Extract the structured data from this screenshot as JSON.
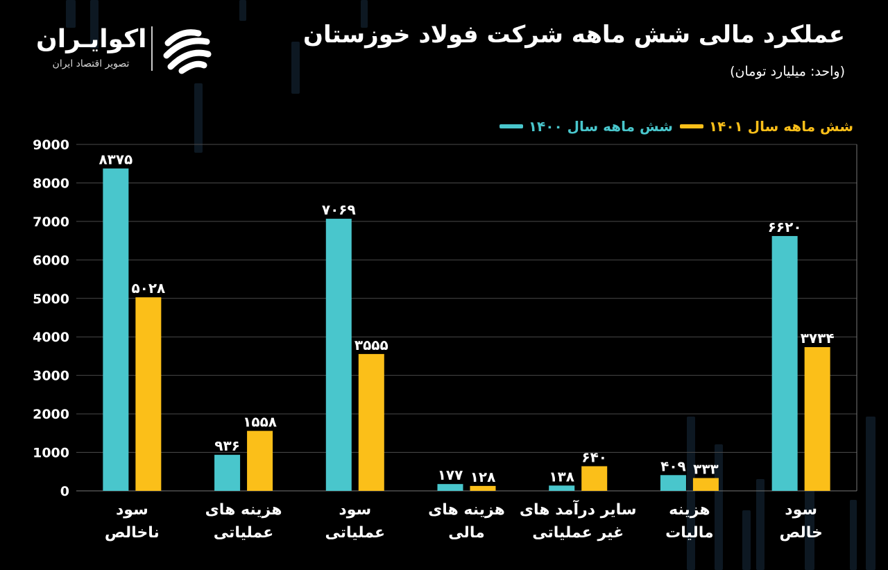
{
  "brand": {
    "name": "اکوایـران",
    "tagline": "تصویر اقتصاد ایران"
  },
  "header": {
    "title": "عملکرد مالی شش ماهه شرکت فولاد خوزستان",
    "unit": "(واحد: میلیارد تومان)"
  },
  "colors": {
    "series_1400": "#49c6cc",
    "series_1401": "#fbbf19",
    "grid": "#555555",
    "background": "#000000"
  },
  "chart_data": {
    "type": "bar",
    "title": "عملکرد مالی شش ماهه شرکت فولاد خوزستان",
    "ylabel": "(واحد: میلیارد تومان)",
    "xlabel": "",
    "ylim": [
      0,
      9000
    ],
    "yticks": [
      0,
      1000,
      2000,
      3000,
      4000,
      5000,
      6000,
      7000,
      8000,
      9000
    ],
    "ytick_labels": [
      "0",
      "1000",
      "2000",
      "3000",
      "4000",
      "5000",
      "6000",
      "7000",
      "8000",
      "9000"
    ],
    "grid": true,
    "legend_position": "top-right",
    "categories": [
      [
        "سود",
        "ناخالص"
      ],
      [
        "هزینه های",
        "عملیاتی"
      ],
      [
        "سود",
        "عملیاتی"
      ],
      [
        "هزینه های",
        "مالی"
      ],
      [
        "سایر درآمد های",
        "غیر عملیاتی"
      ],
      [
        "هزینه",
        "مالیات"
      ],
      [
        "سود",
        "خالص"
      ]
    ],
    "series": [
      {
        "name": "شش ماهه سال ۱۴۰۰",
        "color": "#49c6cc",
        "values": [
          8375,
          936,
          7069,
          177,
          138,
          409,
          6620
        ],
        "labels": [
          "۸۳۷۵",
          "۹۳۶",
          "۷۰۶۹",
          "۱۷۷",
          "۱۳۸",
          "۴۰۹",
          "۶۶۲۰"
        ]
      },
      {
        "name": "شش ماهه سال ۱۴۰۱",
        "color": "#fbbf19",
        "values": [
          5028,
          1558,
          3555,
          128,
          640,
          333,
          3734
        ],
        "labels": [
          "۵۰۲۸",
          "۱۵۵۸",
          "۳۵۵۵",
          "۱۲۸",
          "۶۴۰",
          "۳۳۳",
          "۳۷۳۴"
        ]
      }
    ]
  }
}
